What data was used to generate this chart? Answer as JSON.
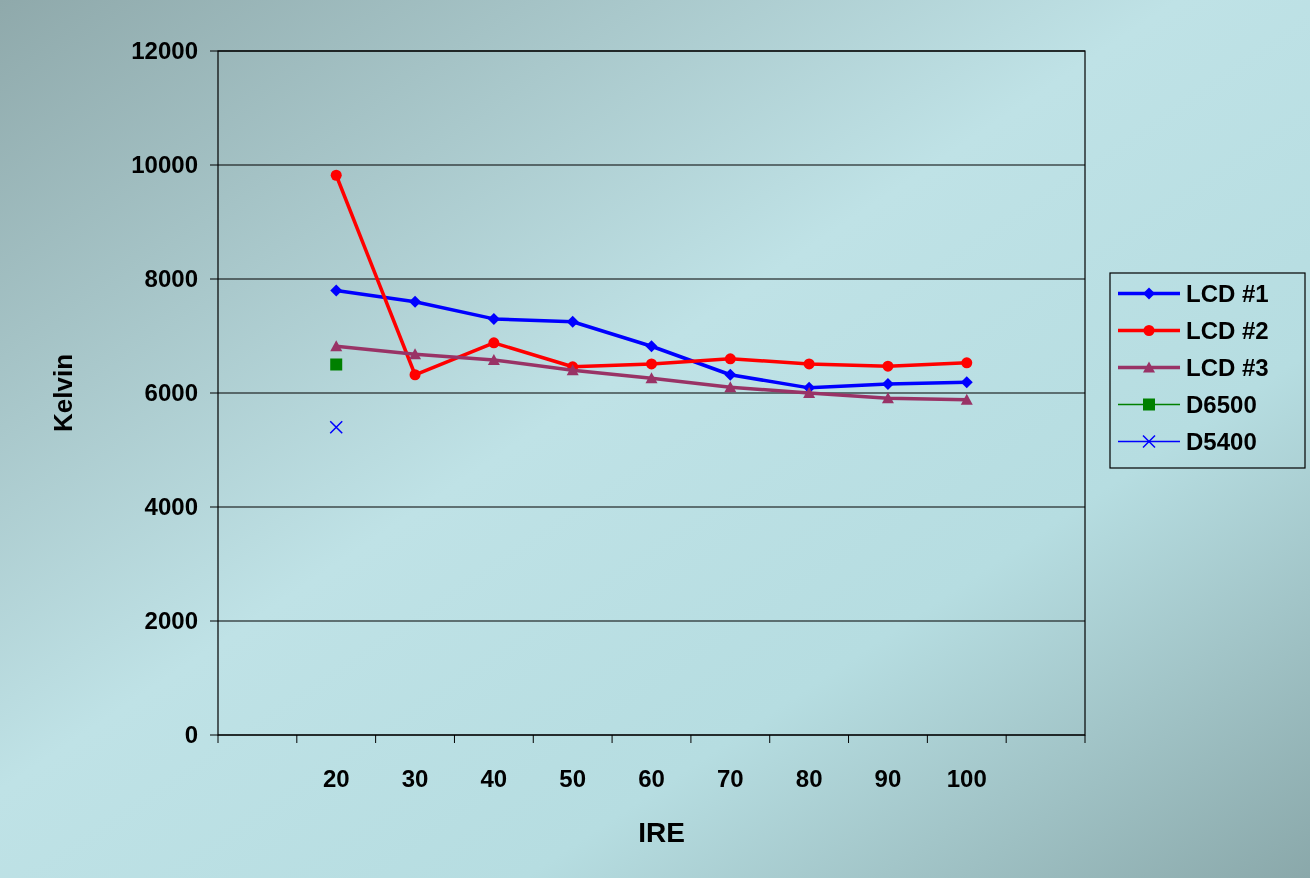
{
  "chart_data": {
    "type": "line",
    "xlabel": "IRE",
    "ylabel": "Kelvin",
    "categories": [
      null,
      "20",
      "30",
      "40",
      "50",
      "60",
      "70",
      "80",
      "90",
      "100",
      null
    ],
    "series": [
      {
        "name": "LCD #1",
        "color": "#0000ff",
        "marker": "diamond",
        "values": [
          null,
          7800,
          7600,
          7300,
          7250,
          6820,
          6320,
          6090,
          6160,
          6190,
          null
        ]
      },
      {
        "name": "LCD #2",
        "color": "#ff0000",
        "marker": "circle",
        "values": [
          null,
          9820,
          6320,
          6880,
          6460,
          6510,
          6600,
          6510,
          6470,
          6530,
          null
        ]
      },
      {
        "name": "LCD #3",
        "color": "#993366",
        "marker": "triangle",
        "values": [
          null,
          6820,
          6680,
          6580,
          6400,
          6260,
          6100,
          6000,
          5910,
          5880,
          null
        ]
      },
      {
        "name": "D6500",
        "color": "#008000",
        "marker": "square",
        "values": [
          null,
          6500,
          null,
          null,
          null,
          null,
          null,
          null,
          null,
          null,
          null
        ]
      },
      {
        "name": "D5400",
        "color": "#0000ff",
        "marker": "cross",
        "values": [
          null,
          5400,
          null,
          null,
          null,
          null,
          null,
          null,
          null,
          null,
          null
        ]
      }
    ],
    "ylim": [
      0,
      12000
    ],
    "yticks": [
      0,
      2000,
      4000,
      6000,
      8000,
      10000,
      12000
    ],
    "grid": "y",
    "legend": "right"
  }
}
